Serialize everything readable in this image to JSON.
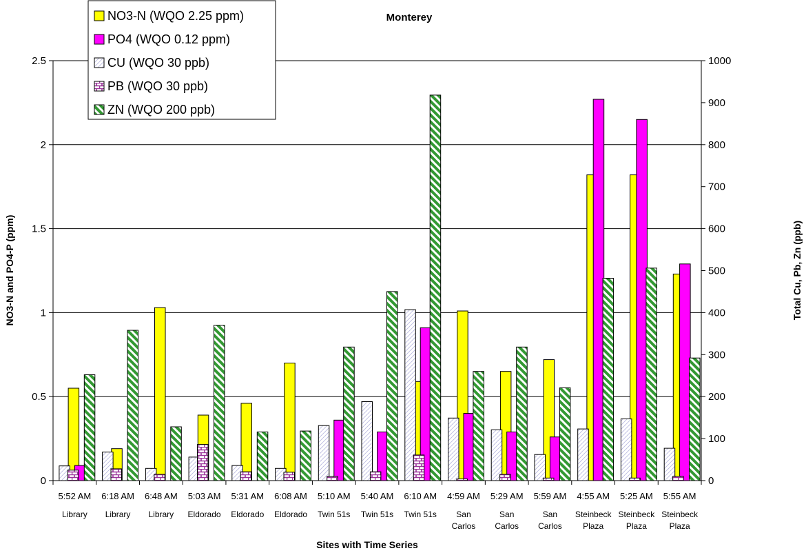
{
  "chart_data": {
    "type": "bar",
    "title": "Monterey",
    "xlabel": "Sites with Time Series",
    "ylabel_left": "NO3-N and PO4-P (ppm)",
    "ylabel_right": "Total Cu, Pb, Zn (ppb)",
    "ylim_left": [
      0,
      2.5
    ],
    "ylim_right": [
      0,
      1000
    ],
    "yticks_left": [
      "0",
      "0.5",
      "1",
      "1.5",
      "2",
      "2.5"
    ],
    "yticks_right": [
      "0",
      "100",
      "200",
      "300",
      "400",
      "500",
      "600",
      "700",
      "800",
      "900",
      "1000"
    ],
    "grid": true,
    "legend_position": "top-left",
    "categories": [
      {
        "time": "5:52 AM",
        "site": [
          "Library"
        ]
      },
      {
        "time": "6:18 AM",
        "site": [
          "Library"
        ]
      },
      {
        "time": "6:48 AM",
        "site": [
          "Library"
        ]
      },
      {
        "time": "5:03 AM",
        "site": [
          "Eldorado"
        ]
      },
      {
        "time": "5:31 AM",
        "site": [
          "Eldorado"
        ]
      },
      {
        "time": "6:08 AM",
        "site": [
          "Eldorado"
        ]
      },
      {
        "time": "5:10 AM",
        "site": [
          "Twin 51s"
        ]
      },
      {
        "time": "5:40 AM",
        "site": [
          "Twin 51s"
        ]
      },
      {
        "time": "6:10 AM",
        "site": [
          "Twin 51s"
        ]
      },
      {
        "time": "4:59 AM",
        "site": [
          "San",
          "Carlos"
        ]
      },
      {
        "time": "5:29 AM",
        "site": [
          "San",
          "Carlos"
        ]
      },
      {
        "time": "5:59 AM",
        "site": [
          "San",
          "Carlos"
        ]
      },
      {
        "time": "4:55 AM",
        "site": [
          "Steinbeck",
          "Plaza"
        ]
      },
      {
        "time": "5:25 AM",
        "site": [
          "Steinbeck",
          "Plaza"
        ]
      },
      {
        "time": "5:55 AM",
        "site": [
          "Steinbeck",
          "Plaza"
        ]
      }
    ],
    "series": [
      {
        "name": "NO3-N (WQO 2.25 ppm)",
        "axis": "left",
        "color": "#ffff00",
        "pattern": "solid",
        "values": [
          0.55,
          0.19,
          1.03,
          0.39,
          0.46,
          0.7,
          0.0,
          0.0,
          0.59,
          1.01,
          0.65,
          0.72,
          1.82,
          1.82,
          1.23
        ]
      },
      {
        "name": "PO4 (WQO 0.12 ppm)",
        "axis": "left",
        "color": "#ff00ff",
        "pattern": "solid",
        "values": [
          0.09,
          0.0,
          0.0,
          0.0,
          0.0,
          0.0,
          0.36,
          0.29,
          0.91,
          0.4,
          0.29,
          0.26,
          2.27,
          2.15,
          1.29
        ]
      },
      {
        "name": "CU (WQO 30 ppb)",
        "axis": "right",
        "color": "#ffffff",
        "pattern": "hatch-light",
        "values": [
          35,
          68,
          29,
          56,
          36,
          29,
          131,
          188,
          407,
          149,
          121,
          62,
          123,
          147,
          77
        ]
      },
      {
        "name": "PB (WQO 30 ppb)",
        "axis": "right",
        "color": "#993399",
        "pattern": "brick",
        "values": [
          25,
          28,
          15,
          86,
          21,
          20,
          10,
          21,
          61,
          4,
          15,
          6,
          0,
          6,
          10
        ]
      },
      {
        "name": "ZN (WQO 200 ppb)",
        "axis": "right",
        "color": "#339933",
        "pattern": "stripes",
        "values": [
          252,
          358,
          128,
          370,
          116,
          118,
          318,
          450,
          918,
          260,
          318,
          221,
          482,
          506,
          292
        ]
      }
    ]
  }
}
